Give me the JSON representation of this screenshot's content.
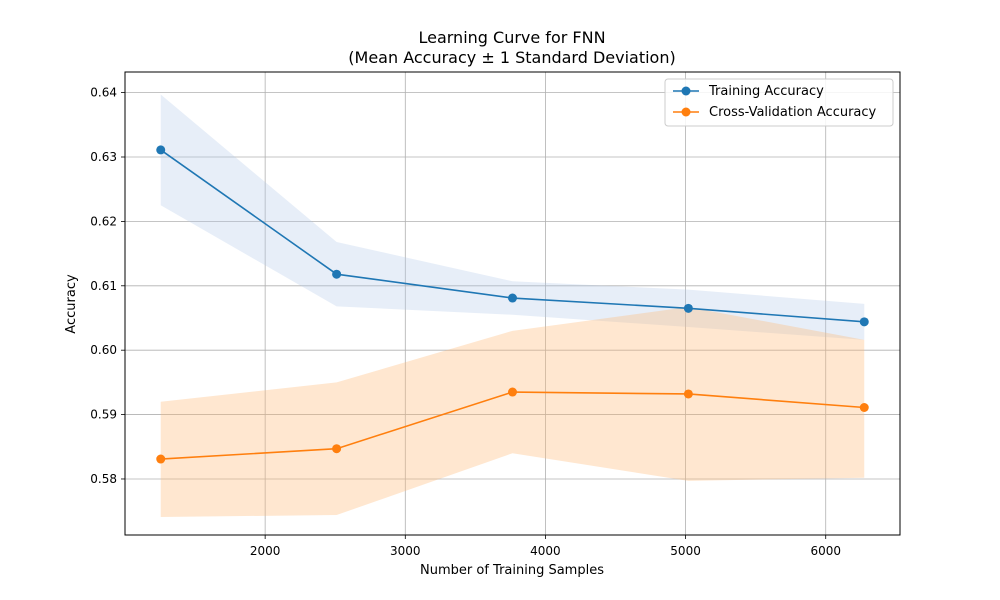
{
  "chart_data": {
    "type": "line",
    "title": "Learning Curve for FNN",
    "subtitle": "(Mean Accuracy ± 1 Standard Deviation)",
    "xlabel": "Number of Training Samples",
    "ylabel": "Accuracy",
    "xlim": [
      1000,
      6530
    ],
    "ylim": [
      0.5713,
      0.6432
    ],
    "x_ticks": [
      2000,
      3000,
      4000,
      5000,
      6000
    ],
    "x_tick_labels": [
      "2000",
      "3000",
      "4000",
      "5000",
      "6000"
    ],
    "y_ticks": [
      0.58,
      0.59,
      0.6,
      0.61,
      0.62,
      0.63,
      0.64
    ],
    "y_tick_labels": [
      "0.58",
      "0.59",
      "0.60",
      "0.61",
      "0.62",
      "0.63",
      "0.64"
    ],
    "grid": true,
    "legend_position": "top-right",
    "x": [
      1255,
      2510,
      3765,
      5020,
      6275
    ],
    "series": [
      {
        "name": "Training Accuracy",
        "color": "#1f77b4",
        "band_color": "#aec7e8",
        "values": [
          0.6311,
          0.6118,
          0.6081,
          0.6065,
          0.6044
        ],
        "upper": [
          0.6397,
          0.6168,
          0.6107,
          0.6094,
          0.6072
        ],
        "lower": [
          0.6225,
          0.6068,
          0.6055,
          0.6036,
          0.6016
        ]
      },
      {
        "name": "Cross-Validation Accuracy",
        "color": "#ff7f0e",
        "band_color": "#ffbb78",
        "values": [
          0.5831,
          0.5847,
          0.5935,
          0.5932,
          0.5911
        ],
        "upper": [
          0.592,
          0.595,
          0.603,
          0.6067,
          0.6016
        ],
        "lower": [
          0.5741,
          0.5744,
          0.584,
          0.5797,
          0.5802
        ]
      }
    ]
  }
}
